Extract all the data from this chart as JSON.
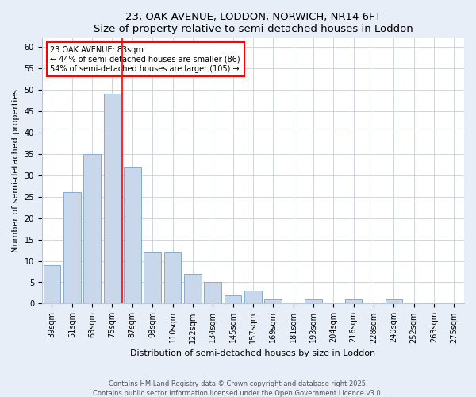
{
  "title": "23, OAK AVENUE, LODDON, NORWICH, NR14 6FT",
  "subtitle": "Size of property relative to semi-detached houses in Loddon",
  "xlabel": "Distribution of semi-detached houses by size in Loddon",
  "ylabel": "Number of semi-detached properties",
  "bar_color": "#c8d8ea",
  "bar_edge_color": "#8aabcc",
  "bins": [
    "39sqm",
    "51sqm",
    "63sqm",
    "75sqm",
    "87sqm",
    "98sqm",
    "110sqm",
    "122sqm",
    "134sqm",
    "145sqm",
    "157sqm",
    "169sqm",
    "181sqm",
    "193sqm",
    "204sqm",
    "216sqm",
    "228sqm",
    "240sqm",
    "252sqm",
    "263sqm",
    "275sqm"
  ],
  "values": [
    9,
    26,
    35,
    49,
    32,
    12,
    12,
    7,
    5,
    2,
    3,
    1,
    0,
    1,
    0,
    1,
    0,
    1,
    0,
    0,
    0
  ],
  "red_line_x": 4.0,
  "annotation_line1": "23 OAK AVENUE: 83sqm",
  "annotation_line2": "← 44% of semi-detached houses are smaller (86)",
  "annotation_line3": "54% of semi-detached houses are larger (105) →",
  "ylim": [
    0,
    62
  ],
  "yticks": [
    0,
    5,
    10,
    15,
    20,
    25,
    30,
    35,
    40,
    45,
    50,
    55,
    60
  ],
  "footer1": "Contains HM Land Registry data © Crown copyright and database right 2025.",
  "footer2": "Contains public sector information licensed under the Open Government Licence v3.0.",
  "background_color": "#e8eef8",
  "plot_background_color": "#ffffff",
  "title_fontsize": 9.5,
  "subtitle_fontsize": 8.5,
  "axis_label_fontsize": 8,
  "tick_fontsize": 7,
  "annotation_fontsize": 7,
  "footer_fontsize": 6
}
